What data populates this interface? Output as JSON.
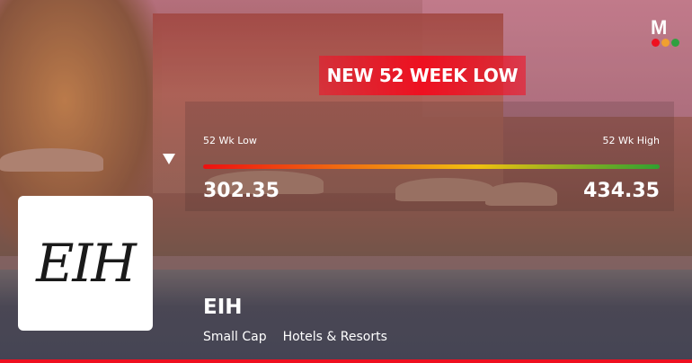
{
  "banner": {
    "title": "NEW 52 WEEK LOW"
  },
  "range": {
    "low_label": "52 Wk Low",
    "high_label": "52 Wk High",
    "low_value": "302.35",
    "high_value": "434.35",
    "current_position_fraction": 0
  },
  "company": {
    "logo_text": "EIH",
    "name": "EIH",
    "market_cap": "Small Cap",
    "industry": "Hotels & Resorts"
  },
  "brand": {
    "logo_letter": "M",
    "dot_colors": [
      "#ee1020",
      "#f0a030",
      "#30a040"
    ]
  }
}
